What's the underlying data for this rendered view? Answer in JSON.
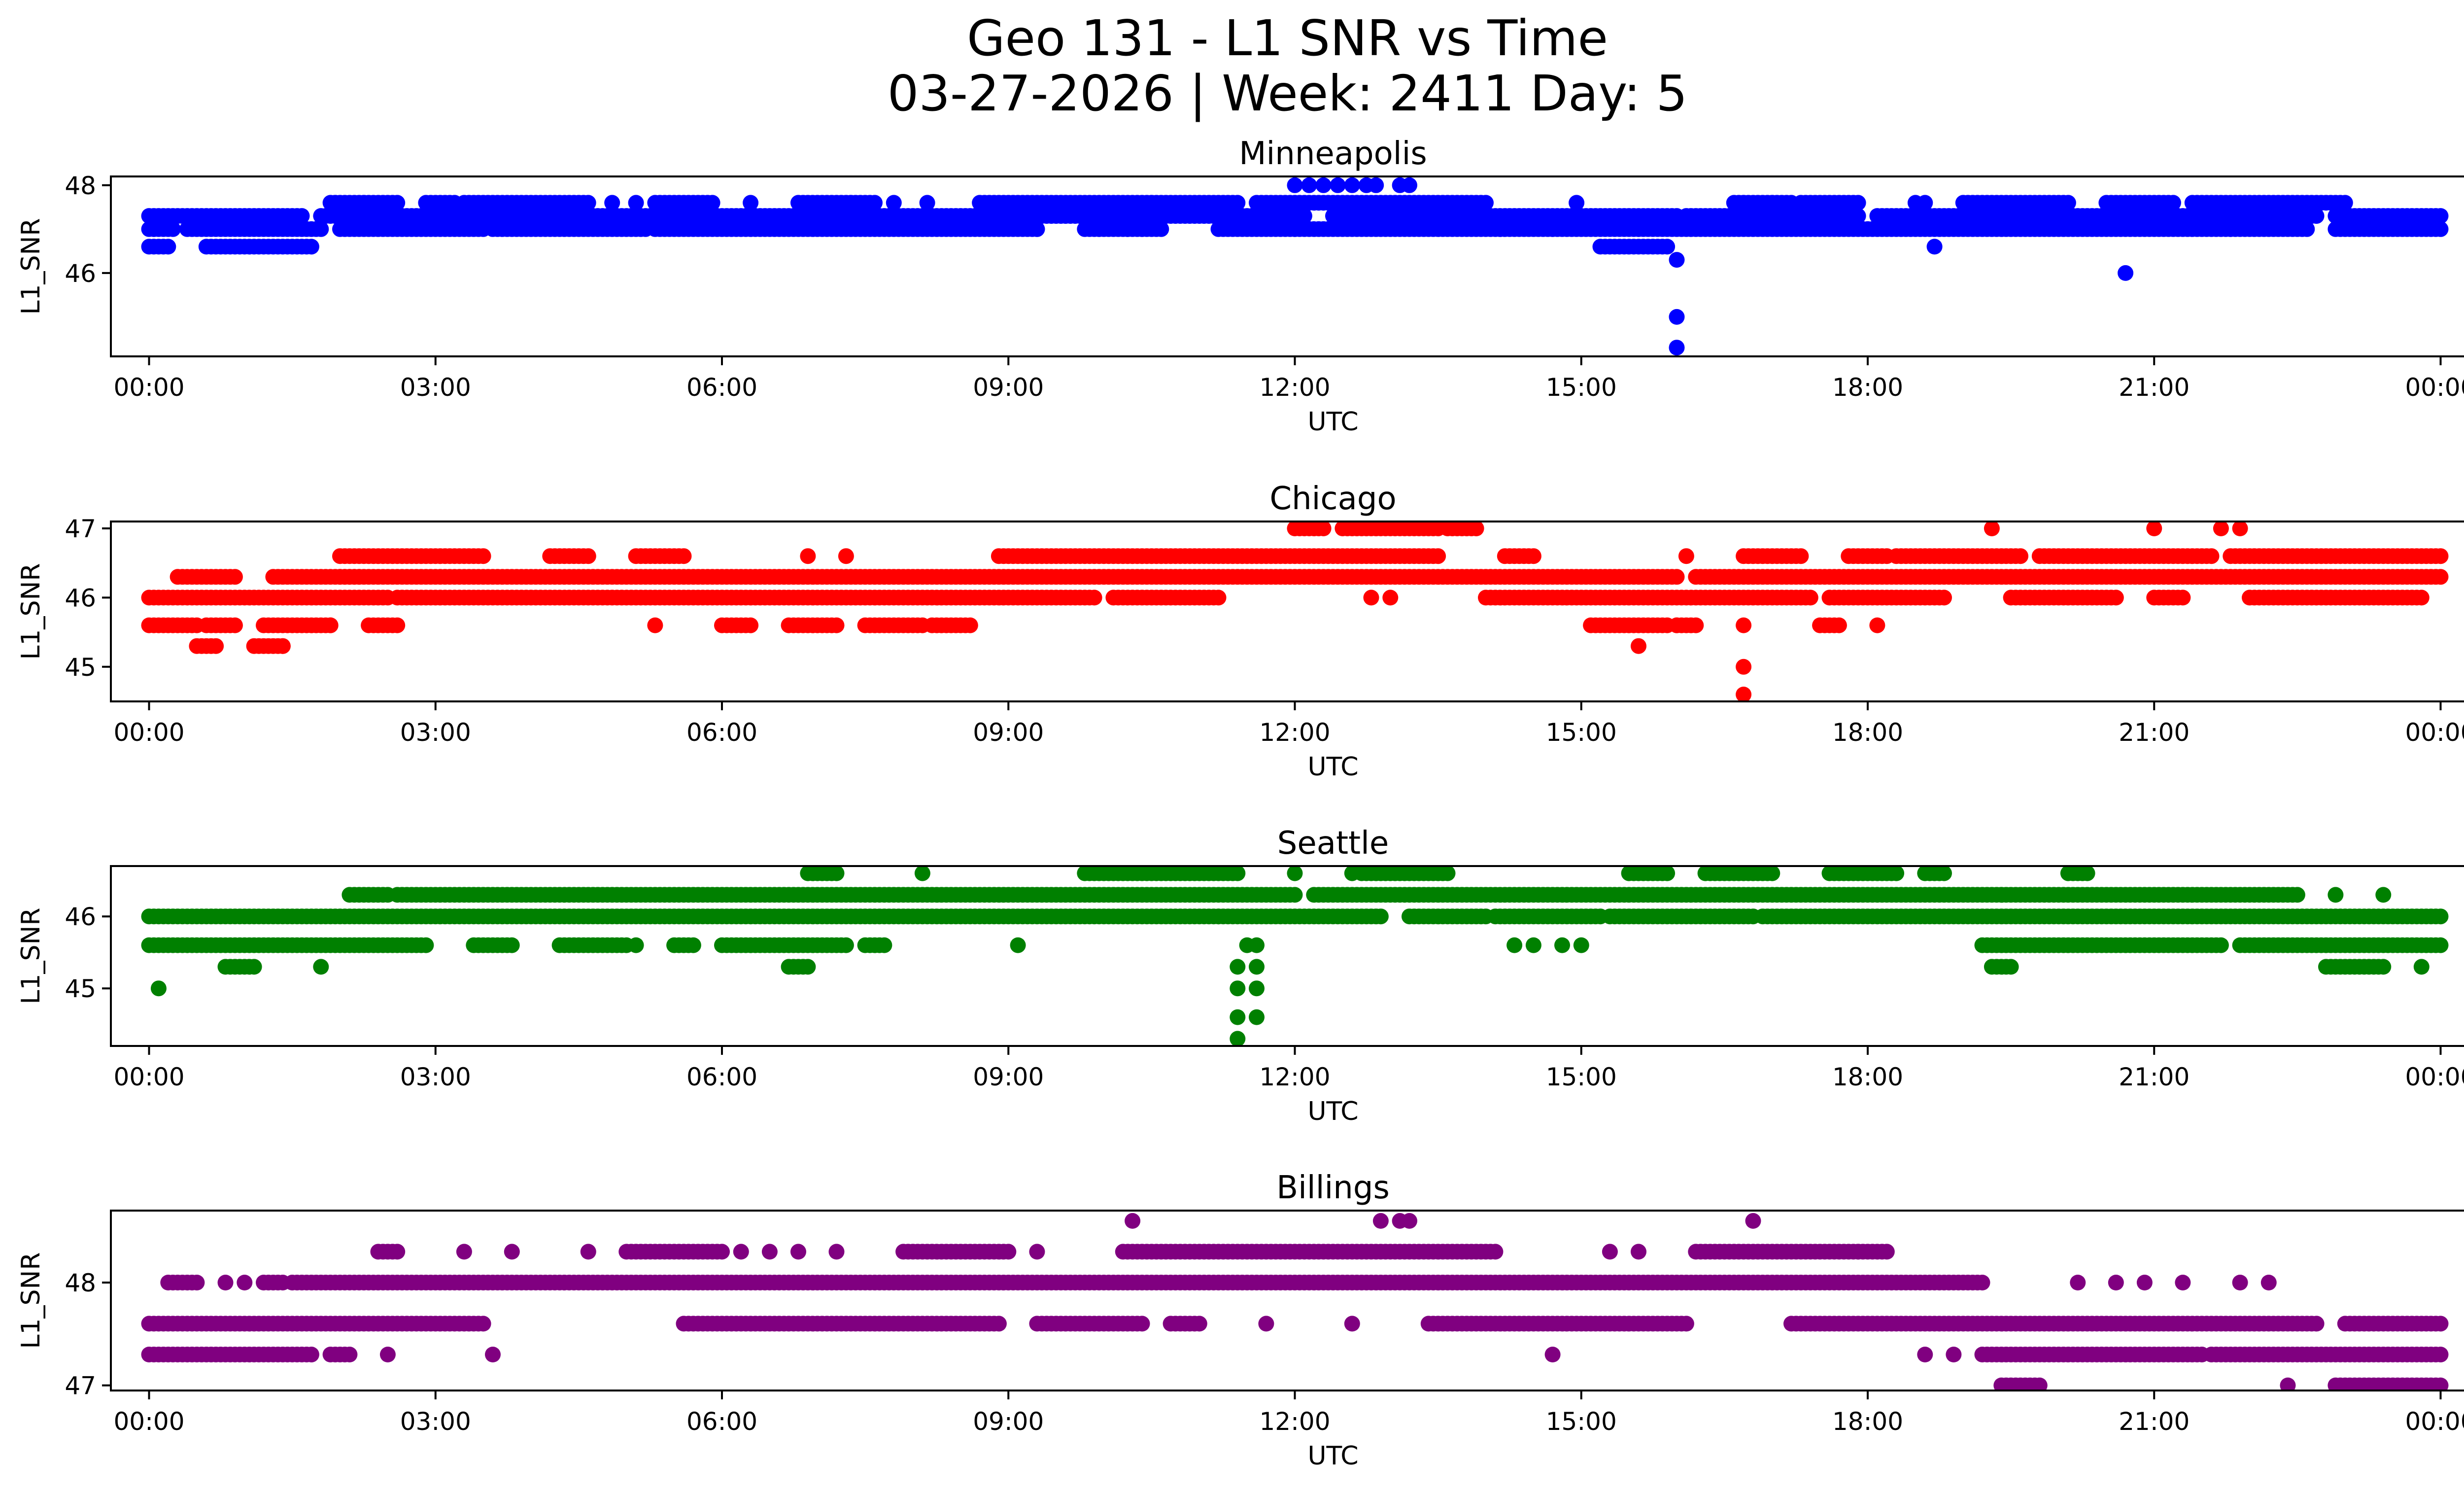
{
  "figure": {
    "title_line1": "Geo 131 - L1 SNR vs Time",
    "title_line2": "03-27-2026 | Week: 2411 Day: 5"
  },
  "chart_data": [
    {
      "type": "scatter",
      "title": "Minneapolis",
      "xlabel": "UTC",
      "ylabel": "L1_SNR",
      "color": "#0000ff",
      "xlim": [
        -0.4,
        25.2
      ],
      "ylim": [
        44.1,
        48.2
      ],
      "x_ticks": [
        0,
        3,
        6,
        9,
        12,
        15,
        18,
        21,
        24
      ],
      "x_tick_labels": [
        "00:00",
        "03:00",
        "06:00",
        "09:00",
        "12:00",
        "15:00",
        "18:00",
        "21:00",
        "00:00"
      ],
      "y_ticks": [
        46,
        48
      ],
      "y_tick_labels": [
        "46",
        "48"
      ],
      "bands": [
        {
          "y": 47.0,
          "segments": [
            [
              0,
              0.2
            ],
            [
              0.4,
              1.8
            ],
            [
              2,
              3.5
            ],
            [
              3.6,
              5.2
            ],
            [
              5.3,
              9.3
            ],
            [
              9.8,
              10.6
            ],
            [
              11.2,
              15.6
            ],
            [
              15.6,
              22.6
            ],
            [
              22.9,
              24
            ]
          ]
        },
        {
          "y": 47.3,
          "segments": [
            [
              0,
              1.6
            ],
            [
              1.8,
              8.9
            ],
            [
              8.9,
              12.1
            ],
            [
              12.4,
              16.0
            ],
            [
              16.1,
              17.9
            ],
            [
              18.1,
              22.7
            ],
            [
              22.9,
              24
            ]
          ]
        },
        {
          "y": 47.6,
          "segments": [
            [
              1.9,
              2.6
            ],
            [
              2.9,
              3.2
            ],
            [
              3.3,
              4.6
            ],
            [
              5.3,
              5.9
            ],
            [
              6.8,
              7.6
            ],
            [
              8.7,
              10.5
            ],
            [
              10.5,
              11.4
            ],
            [
              11.6,
              14.0
            ],
            [
              16.6,
              17.2
            ],
            [
              17.3,
              17.9
            ],
            [
              19.0,
              20.1
            ],
            [
              20.5,
              21.2
            ],
            [
              21.4,
              23.0
            ]
          ]
        },
        {
          "y": 46.6,
          "segments": [
            [
              0,
              0.2
            ],
            [
              0.6,
              1.7
            ],
            [
              15.2,
              15.9
            ]
          ]
        }
      ],
      "points": [
        [
          0.05,
          47.0
        ],
        [
          0.25,
          47.0
        ],
        [
          1.95,
          47.6
        ],
        [
          2.25,
          47.6
        ],
        [
          4.85,
          47.6
        ],
        [
          5.1,
          47.6
        ],
        [
          6.3,
          47.6
        ],
        [
          7.35,
          47.6
        ],
        [
          7.8,
          47.6
        ],
        [
          8.15,
          47.6
        ],
        [
          9.3,
          47.0
        ],
        [
          9.95,
          47.0
        ],
        [
          10.25,
          47.0
        ],
        [
          10.4,
          47.0
        ],
        [
          12.0,
          47.0
        ],
        [
          12.0,
          48.0
        ],
        [
          12.15,
          48.0
        ],
        [
          12.3,
          48.0
        ],
        [
          12.45,
          48.0
        ],
        [
          12.6,
          48.0
        ],
        [
          12.75,
          48.0
        ],
        [
          12.85,
          48.0
        ],
        [
          13.1,
          48.0
        ],
        [
          13.2,
          48.0
        ],
        [
          14.15,
          47.0
        ],
        [
          14.7,
          47.0
        ],
        [
          14.95,
          47.6
        ],
        [
          16.0,
          46.3
        ],
        [
          16.0,
          45.0
        ],
        [
          16.0,
          44.3
        ],
        [
          16.7,
          47.6
        ],
        [
          17.0,
          47.6
        ],
        [
          18.7,
          46.6
        ],
        [
          18.5,
          47.6
        ],
        [
          18.6,
          47.6
        ],
        [
          20.7,
          46.0
        ],
        [
          21.8,
          47.0
        ]
      ]
    },
    {
      "type": "scatter",
      "title": "Chicago",
      "xlabel": "UTC",
      "ylabel": "L1_SNR",
      "color": "#ff0000",
      "xlim": [
        -0.4,
        25.2
      ],
      "ylim": [
        44.5,
        47.1
      ],
      "x_ticks": [
        0,
        3,
        6,
        9,
        12,
        15,
        18,
        21,
        24
      ],
      "x_tick_labels": [
        "00:00",
        "03:00",
        "06:00",
        "09:00",
        "12:00",
        "15:00",
        "18:00",
        "21:00",
        "00:00"
      ],
      "y_ticks": [
        45,
        46,
        47
      ],
      "y_tick_labels": [
        "45",
        "46",
        "47"
      ],
      "bands": [
        {
          "y": 46.0,
          "segments": [
            [
              0,
              2.5
            ],
            [
              2.6,
              9.9
            ],
            [
              10.1,
              11.2
            ],
            [
              14.0,
              17.4
            ],
            [
              17.6,
              18.8
            ],
            [
              19.5,
              20.6
            ],
            [
              21.0,
              21.3
            ],
            [
              22.0,
              23.8
            ]
          ]
        },
        {
          "y": 46.3,
          "segments": [
            [
              0.3,
              0.9
            ],
            [
              1.3,
              2.2
            ],
            [
              2.0,
              16.0
            ],
            [
              16.2,
              24
            ]
          ]
        },
        {
          "y": 46.6,
          "segments": [
            [
              2.0,
              3.5
            ],
            [
              4.2,
              4.6
            ],
            [
              5.1,
              5.6
            ],
            [
              8.9,
              13.5
            ],
            [
              14.2,
              14.5
            ],
            [
              16.7,
              17.3
            ],
            [
              17.8,
              18.2
            ],
            [
              18.3,
              19.6
            ],
            [
              19.8,
              21.6
            ],
            [
              21.8,
              24
            ]
          ]
        },
        {
          "y": 45.6,
          "segments": [
            [
              0,
              0.5
            ],
            [
              0.6,
              0.9
            ],
            [
              1.2,
              1.9
            ],
            [
              2.3,
              2.6
            ],
            [
              6.0,
              6.3
            ],
            [
              6.7,
              7.2
            ],
            [
              7.5,
              8.1
            ],
            [
              8.2,
              8.6
            ],
            [
              15.1,
              15.9
            ],
            [
              16.0,
              16.2
            ],
            [
              17.5,
              17.7
            ]
          ]
        },
        {
          "y": 45.3,
          "segments": [
            [
              0.5,
              0.7
            ],
            [
              1.1,
              1.4
            ]
          ]
        },
        {
          "y": 47.0,
          "segments": [
            [
              12.0,
              12.3
            ],
            [
              12.5,
              13.5
            ],
            [
              13.6,
              13.9
            ]
          ]
        }
      ],
      "points": [
        [
          1.4,
          45.3
        ],
        [
          1.9,
          45.6
        ],
        [
          5.3,
          45.6
        ],
        [
          6.9,
          46.6
        ],
        [
          7.3,
          46.6
        ],
        [
          12.8,
          46.0
        ],
        [
          13.0,
          46.0
        ],
        [
          15.6,
          45.3
        ],
        [
          16.0,
          45.6
        ],
        [
          16.7,
          45.6
        ],
        [
          16.7,
          45.0
        ],
        [
          16.7,
          44.6
        ],
        [
          18.1,
          45.6
        ],
        [
          16.1,
          46.6
        ],
        [
          19.3,
          47.0
        ],
        [
          21.0,
          47.0
        ],
        [
          21.7,
          47.0
        ],
        [
          21.9,
          47.0
        ]
      ]
    },
    {
      "type": "scatter",
      "title": "Seattle",
      "xlabel": "UTC",
      "ylabel": "L1_SNR",
      "color": "#008000",
      "xlim": [
        -0.4,
        25.2
      ],
      "ylim": [
        44.2,
        46.7
      ],
      "x_ticks": [
        0,
        3,
        6,
        9,
        12,
        15,
        18,
        21,
        24
      ],
      "x_tick_labels": [
        "00:00",
        "03:00",
        "06:00",
        "09:00",
        "12:00",
        "15:00",
        "18:00",
        "21:00",
        "00:00"
      ],
      "y_ticks": [
        45,
        46
      ],
      "y_tick_labels": [
        "45",
        "46"
      ],
      "bands": [
        {
          "y": 46.0,
          "segments": [
            [
              0,
              11.2
            ],
            [
              11.2,
              12.9
            ],
            [
              13.2,
              14.0
            ],
            [
              14.1,
              15.2
            ],
            [
              15.3,
              16.8
            ],
            [
              16.9,
              24
            ]
          ]
        },
        {
          "y": 46.3,
          "segments": [
            [
              2.1,
              2.5
            ],
            [
              2.6,
              12.0
            ],
            [
              12.2,
              19.4
            ],
            [
              19.4,
              22.5
            ]
          ]
        },
        {
          "y": 45.6,
          "segments": [
            [
              0,
              2.9
            ],
            [
              3.4,
              3.8
            ],
            [
              4.3,
              5.0
            ],
            [
              5.5,
              5.7
            ],
            [
              6.0,
              7.3
            ],
            [
              7.5,
              7.7
            ],
            [
              19.2,
              21.7
            ],
            [
              21.9,
              24
            ]
          ]
        },
        {
          "y": 46.6,
          "segments": [
            [
              6.9,
              7.2
            ],
            [
              9.8,
              11.4
            ],
            [
              12.7,
              13.6
            ],
            [
              15.5,
              15.9
            ],
            [
              16.3,
              17.0
            ],
            [
              17.6,
              18.3
            ],
            [
              18.6,
              18.8
            ],
            [
              20.1,
              20.3
            ]
          ]
        },
        {
          "y": 45.3,
          "segments": [
            [
              0.8,
              1.1
            ],
            [
              6.7,
              6.9
            ],
            [
              19.3,
              19.5
            ],
            [
              22.8,
              23.4
            ]
          ]
        }
      ],
      "points": [
        [
          0.1,
          45.0
        ],
        [
          1.8,
          45.3
        ],
        [
          5.1,
          45.6
        ],
        [
          8.1,
          46.6
        ],
        [
          9.1,
          45.6
        ],
        [
          11.5,
          45.6
        ],
        [
          11.6,
          45.6
        ],
        [
          11.4,
          45.3
        ],
        [
          11.6,
          45.3
        ],
        [
          11.4,
          45.0
        ],
        [
          11.6,
          45.0
        ],
        [
          11.4,
          44.6
        ],
        [
          11.6,
          44.6
        ],
        [
          11.4,
          44.3
        ],
        [
          12.0,
          46.6
        ],
        [
          12.6,
          46.6
        ],
        [
          14.3,
          45.6
        ],
        [
          14.5,
          45.6
        ],
        [
          14.8,
          45.6
        ],
        [
          15.0,
          45.6
        ],
        [
          22.9,
          46.3
        ],
        [
          23.4,
          46.3
        ],
        [
          23.8,
          45.3
        ]
      ]
    },
    {
      "type": "scatter",
      "title": "Billings",
      "xlabel": "UTC",
      "ylabel": "L1_SNR",
      "color": "#800080",
      "xlim": [
        -0.4,
        25.2
      ],
      "ylim": [
        46.95,
        48.7
      ],
      "x_ticks": [
        0,
        3,
        6,
        9,
        12,
        15,
        18,
        21,
        24
      ],
      "x_tick_labels": [
        "00:00",
        "03:00",
        "06:00",
        "09:00",
        "12:00",
        "15:00",
        "18:00",
        "21:00",
        "00:00"
      ],
      "y_ticks": [
        47,
        48
      ],
      "y_tick_labels": [
        "47",
        "48"
      ],
      "bands": [
        {
          "y": 48.0,
          "segments": [
            [
              0.2,
              0.5
            ],
            [
              1.2,
              1.4
            ],
            [
              1.5,
              19.2
            ]
          ]
        },
        {
          "y": 47.6,
          "segments": [
            [
              0,
              3.5
            ],
            [
              5.6,
              8.9
            ],
            [
              9.3,
              10.4
            ],
            [
              10.7,
              11.0
            ],
            [
              13.4,
              16.1
            ],
            [
              17.2,
              22.7
            ],
            [
              23.0,
              24
            ]
          ]
        },
        {
          "y": 47.3,
          "segments": [
            [
              0,
              1.7
            ],
            [
              1.9,
              2.1
            ],
            [
              19.2,
              21.5
            ],
            [
              21.6,
              24
            ]
          ]
        },
        {
          "y": 48.3,
          "segments": [
            [
              2.4,
              2.6
            ],
            [
              5.0,
              6.0
            ],
            [
              7.9,
              9.0
            ],
            [
              10.2,
              14.1
            ],
            [
              16.2,
              17.9
            ],
            [
              17.9,
              18.2
            ]
          ]
        },
        {
          "y": 47.0,
          "segments": [
            [
              19.4,
              19.8
            ],
            [
              22.9,
              24
            ]
          ]
        }
      ],
      "points": [
        [
          0.8,
          48.0
        ],
        [
          1.0,
          48.0
        ],
        [
          2.5,
          47.3
        ],
        [
          3.6,
          47.3
        ],
        [
          3.3,
          48.3
        ],
        [
          3.8,
          48.3
        ],
        [
          4.6,
          48.3
        ],
        [
          6.2,
          48.3
        ],
        [
          6.5,
          48.3
        ],
        [
          6.8,
          48.3
        ],
        [
          7.2,
          48.3
        ],
        [
          9.3,
          48.3
        ],
        [
          10.3,
          48.6
        ],
        [
          11.7,
          47.6
        ],
        [
          12.6,
          47.6
        ],
        [
          12.9,
          48.6
        ],
        [
          13.1,
          48.6
        ],
        [
          13.2,
          48.6
        ],
        [
          14.7,
          47.3
        ],
        [
          15.3,
          48.3
        ],
        [
          15.6,
          48.3
        ],
        [
          16.8,
          48.6
        ],
        [
          18.6,
          47.3
        ],
        [
          18.9,
          47.3
        ],
        [
          20.2,
          48.0
        ],
        [
          20.6,
          48.0
        ],
        [
          20.9,
          48.0
        ],
        [
          21.3,
          48.0
        ],
        [
          21.9,
          48.0
        ],
        [
          22.2,
          48.0
        ],
        [
          22.4,
          47.0
        ]
      ]
    }
  ]
}
